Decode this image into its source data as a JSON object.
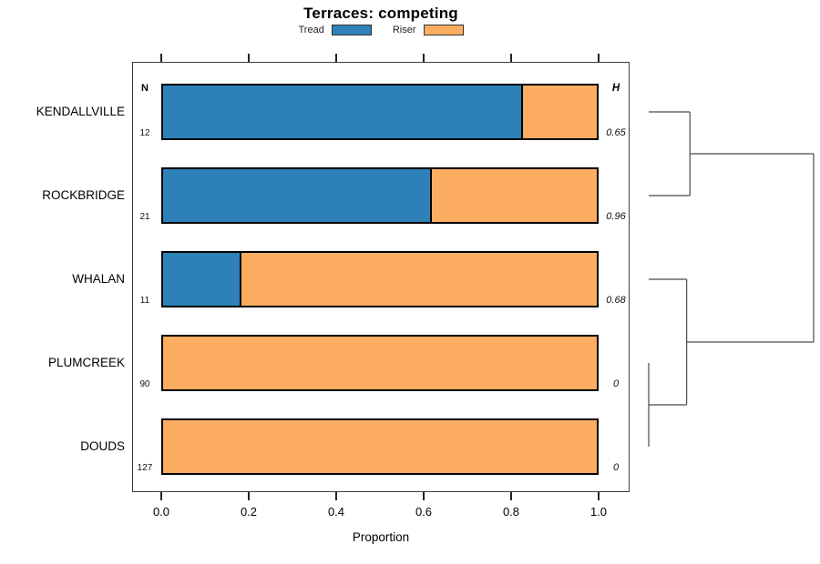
{
  "chart_data": {
    "type": "bar",
    "orientation": "horizontal",
    "stacked": true,
    "title": "Terraces: competing",
    "xlabel": "Proportion",
    "xlim": [
      0,
      1
    ],
    "x_ticks": [
      "0.0",
      "0.2",
      "0.4",
      "0.6",
      "0.8",
      "1.0"
    ],
    "grid": false,
    "legend_position": "top",
    "categories": [
      "KENDALLVILLE",
      "ROCKBRIDGE",
      "WHALAN",
      "PLUMCREEK",
      "DOUDS"
    ],
    "series": [
      {
        "name": "Tread",
        "color": "#2E81B8",
        "values": [
          0.83,
          0.62,
          0.18,
          0,
          0
        ]
      },
      {
        "name": "Riser",
        "color": "#FCAD62",
        "values": [
          0.17,
          0.38,
          0.82,
          1,
          1
        ]
      }
    ],
    "count_column": {
      "header": "N",
      "values": [
        "12",
        "21",
        "11",
        "90",
        "127"
      ]
    },
    "stat_column": {
      "header": "H",
      "values": [
        "0.65",
        "0.96",
        "0.68",
        "0",
        "0"
      ]
    },
    "dendrogram": {
      "leaves": [
        "KENDALLVILLE",
        "ROCKBRIDGE",
        "WHALAN",
        "PLUMCREEK",
        "DOUDS"
      ],
      "merges": [
        {
          "id": "PD",
          "children": [
            "PLUMCREEK",
            "DOUDS"
          ],
          "height": 0.0
        },
        {
          "id": "WPD",
          "children": [
            "WHALAN",
            "PD"
          ],
          "height": 0.23
        },
        {
          "id": "KR",
          "children": [
            "KENDALLVILLE",
            "ROCKBRIDGE"
          ],
          "height": 0.25
        },
        {
          "id": "ROOT",
          "children": [
            "KR",
            "WPD"
          ],
          "height": 1.0
        }
      ]
    }
  },
  "colors": {
    "tread": "#2E81B8",
    "riser": "#FCAD62",
    "bar_border": "#000000",
    "panel_border": "#3D3D3D",
    "tick": "#222222",
    "dendrogram_line": "#4A4A4A",
    "text": "#000000",
    "background": "#FFFFFF"
  }
}
